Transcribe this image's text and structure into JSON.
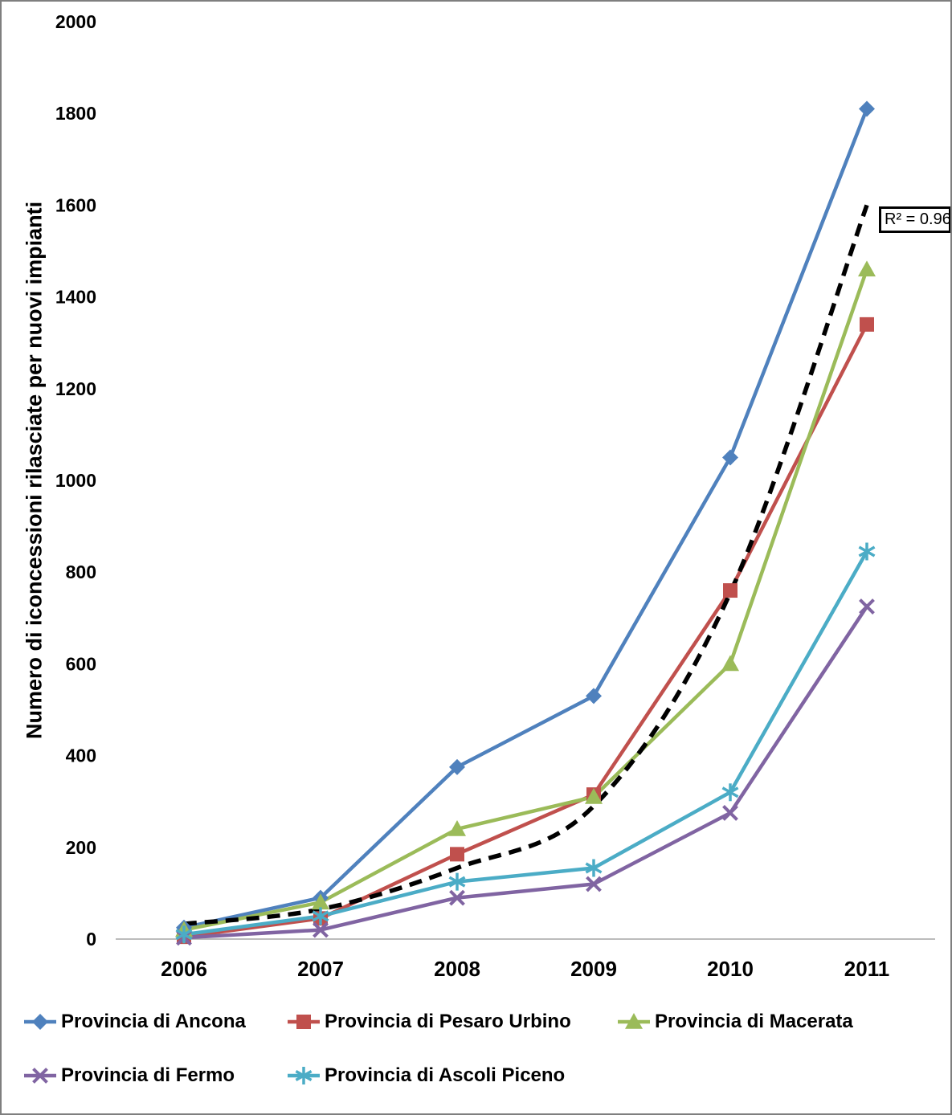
{
  "chart_data": {
    "type": "line",
    "title": "",
    "ylabel": "Numero di iconcessioni rilasciate per nuovi impianti",
    "xlabel": "",
    "categories": [
      "2006",
      "2007",
      "2008",
      "2009",
      "2010",
      "2011"
    ],
    "ylim": [
      0,
      2000
    ],
    "ytick_step": 200,
    "yticks": [
      0,
      200,
      400,
      600,
      800,
      1000,
      1200,
      1400,
      1600,
      1800,
      2000
    ],
    "grid": false,
    "legend_position": "bottom",
    "series": [
      {
        "name": "Provincia di Ancona",
        "color": "#4F81BD",
        "marker": "diamond",
        "values": [
          25,
          90,
          375,
          530,
          1050,
          1810
        ]
      },
      {
        "name": "Provincia di Pesaro Urbino",
        "color": "#C0504D",
        "marker": "square",
        "values": [
          5,
          45,
          185,
          315,
          760,
          1340
        ]
      },
      {
        "name": "Provincia di Macerata",
        "color": "#9BBB59",
        "marker": "triangle",
        "values": [
          20,
          80,
          240,
          310,
          600,
          1460
        ]
      },
      {
        "name": "Provincia di Fermo",
        "color": "#8064A2",
        "marker": "x",
        "values": [
          3,
          20,
          90,
          120,
          275,
          725
        ]
      },
      {
        "name": "Provincia di Ascoli Piceno",
        "color": "#4BACC6",
        "marker": "asterisk",
        "values": [
          10,
          50,
          125,
          155,
          320,
          845
        ]
      }
    ],
    "trendline": {
      "style": "dashed",
      "color": "#000000",
      "values": [
        33,
        65,
        155,
        290,
        755,
        1600
      ],
      "label": "R² = 0.96",
      "r_squared": 0.96
    }
  }
}
